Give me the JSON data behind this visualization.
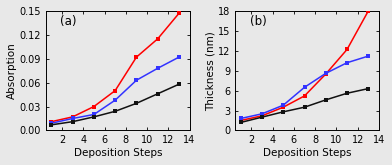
{
  "panel_a": {
    "title": "(a)",
    "ylabel": "Absorption",
    "xlabel": "Deposition Steps",
    "xlim": [
      0.5,
      14
    ],
    "ylim": [
      0.0,
      0.15
    ],
    "yticks": [
      0.0,
      0.03,
      0.06,
      0.09,
      0.12,
      0.15
    ],
    "xticks": [
      2,
      4,
      6,
      8,
      10,
      12,
      14
    ],
    "series": [
      {
        "color": "#ff0000",
        "x": [
          1,
          3,
          5,
          7,
          9,
          11,
          13
        ],
        "y": [
          0.011,
          0.017,
          0.03,
          0.05,
          0.092,
          0.115,
          0.147
        ]
      },
      {
        "color": "#3333ff",
        "x": [
          1,
          3,
          5,
          7,
          9,
          11,
          13
        ],
        "y": [
          0.009,
          0.015,
          0.02,
          0.038,
          0.063,
          0.078,
          0.092
        ]
      },
      {
        "color": "#111111",
        "x": [
          1,
          3,
          5,
          7,
          9,
          11,
          13
        ],
        "y": [
          0.007,
          0.011,
          0.017,
          0.024,
          0.034,
          0.046,
          0.058
        ]
      }
    ]
  },
  "panel_b": {
    "title": "(b)",
    "ylabel": "Thickness (nm)",
    "xlabel": "Deposition Steps",
    "xlim": [
      0.5,
      14
    ],
    "ylim": [
      0,
      18
    ],
    "yticks": [
      0,
      3,
      6,
      9,
      12,
      15,
      18
    ],
    "xticks": [
      2,
      4,
      6,
      8,
      10,
      12,
      14
    ],
    "series": [
      {
        "color": "#ff0000",
        "x": [
          1,
          3,
          5,
          7,
          9,
          11,
          13
        ],
        "y": [
          1.5,
          2.2,
          3.5,
          5.2,
          8.5,
          12.2,
          18.0
        ]
      },
      {
        "color": "#3333ff",
        "x": [
          1,
          3,
          5,
          7,
          9,
          11,
          13
        ],
        "y": [
          1.8,
          2.5,
          3.8,
          6.5,
          8.6,
          10.2,
          11.2
        ]
      },
      {
        "color": "#111111",
        "x": [
          1,
          3,
          5,
          7,
          9,
          11,
          13
        ],
        "y": [
          1.2,
          2.0,
          2.8,
          3.5,
          4.6,
          5.6,
          6.3
        ]
      }
    ]
  },
  "marker": "s",
  "markersize": 3.5,
  "linewidth": 1.1,
  "background_color": "#e8e8e8",
  "figure_facecolor": "#e8e8e8",
  "font_size": 7.0,
  "label_font_size": 7.5,
  "title_fontsize": 8.5
}
